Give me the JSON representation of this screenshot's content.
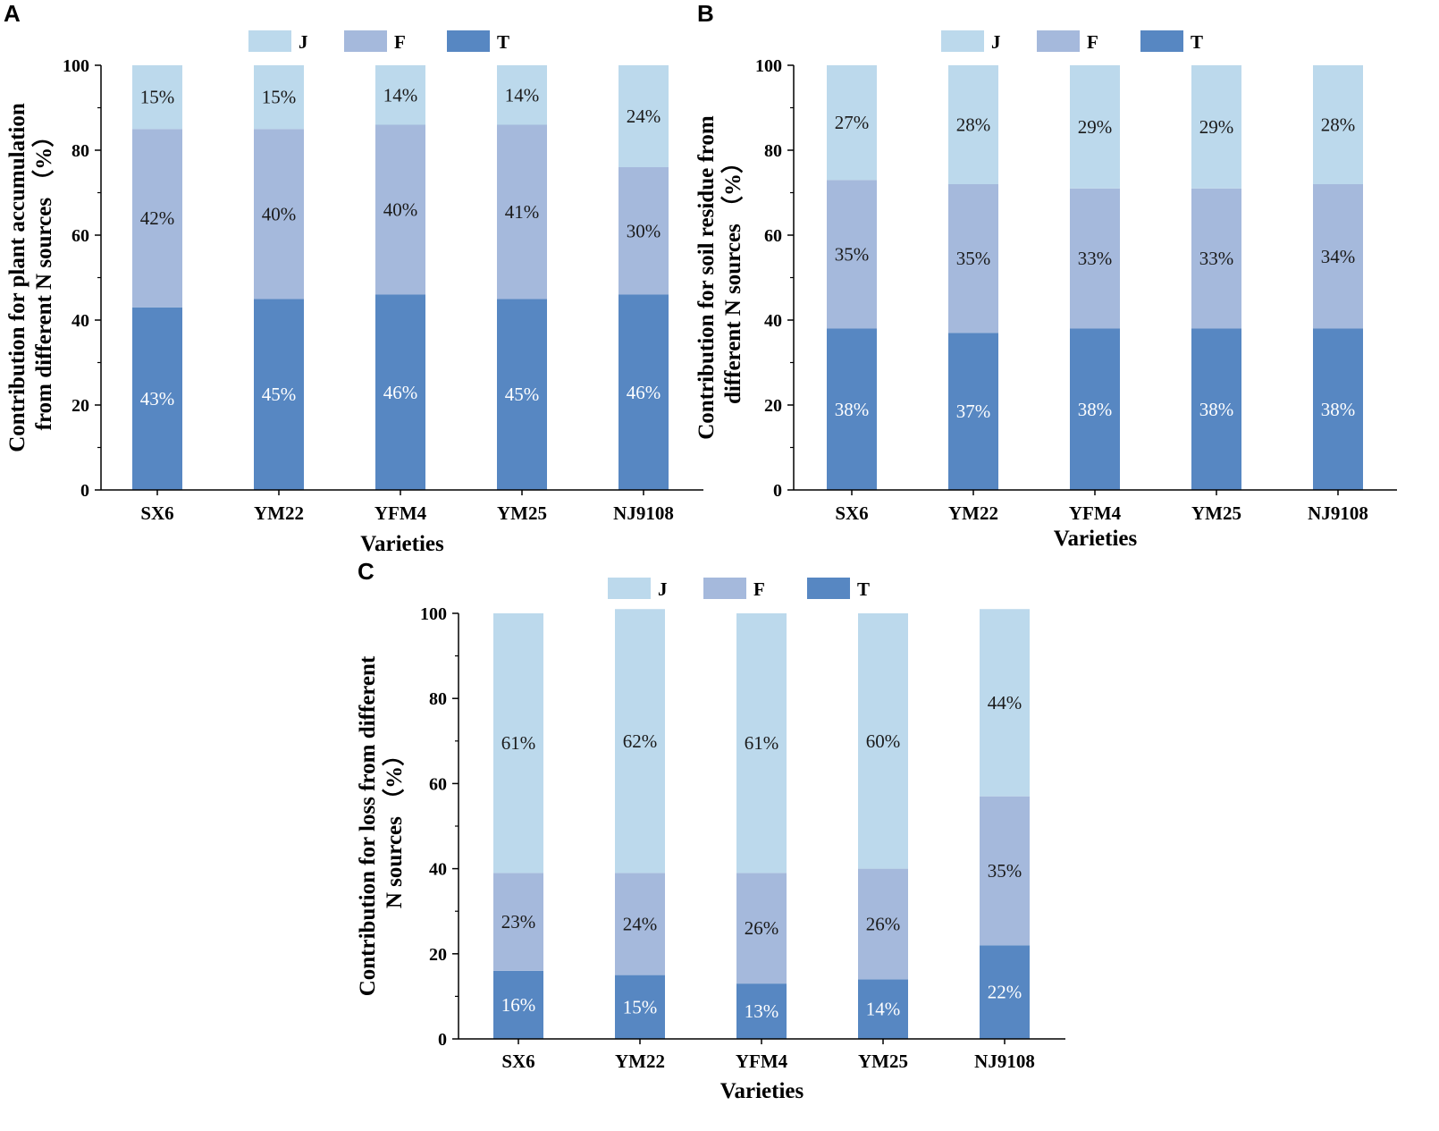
{
  "figure": {
    "title": "",
    "x_axis_title": "Varieties"
  },
  "colors": {
    "J": "#bcd9ec",
    "F": "#a5b9dc",
    "T": "#5787c2",
    "label_dark": "#1a1a1a",
    "label_light": "#ffffff",
    "axis": "#000000"
  },
  "chart_data": [
    {
      "panel": "A",
      "type": "bar",
      "stacked": true,
      "categories": [
        "SX6",
        "YM22",
        "YFM4",
        "YM25",
        "NJ9108"
      ],
      "series": [
        {
          "name": "T",
          "values": [
            43,
            45,
            46,
            45,
            46
          ],
          "labels": [
            "43%",
            "45%",
            "46%",
            "45%",
            "46%"
          ]
        },
        {
          "name": "F",
          "values": [
            42,
            40,
            40,
            41,
            30
          ],
          "labels": [
            "42%",
            "40%",
            "40%",
            "41%",
            "30%"
          ]
        },
        {
          "name": "J",
          "values": [
            15,
            15,
            14,
            14,
            24
          ],
          "labels": [
            "15%",
            "15%",
            "14%",
            "14%",
            "24%"
          ]
        }
      ],
      "legend": [
        "J",
        "F",
        "T"
      ],
      "xlabel": "Varieties",
      "ylabel_lines": [
        "Contribution for plant accumulation",
        "from different N sources （%）"
      ],
      "ylim": [
        0,
        100
      ],
      "yticks": [
        "0",
        "20",
        "40",
        "60",
        "80",
        "100"
      ],
      "legend_position": "top"
    },
    {
      "panel": "B",
      "type": "bar",
      "stacked": true,
      "categories": [
        "SX6",
        "YM22",
        "YFM4",
        "YM25",
        "NJ9108"
      ],
      "series": [
        {
          "name": "T",
          "values": [
            38,
            37,
            38,
            38,
            38
          ],
          "labels": [
            "38%",
            "37%",
            "38%",
            "38%",
            "38%"
          ]
        },
        {
          "name": "F",
          "values": [
            35,
            35,
            33,
            33,
            34
          ],
          "labels": [
            "35%",
            "35%",
            "33%",
            "33%",
            "34%"
          ]
        },
        {
          "name": "J",
          "values": [
            27,
            28,
            29,
            29,
            28
          ],
          "labels": [
            "27%",
            "28%",
            "29%",
            "29%",
            "28%"
          ]
        }
      ],
      "legend": [
        "J",
        "F",
        "T"
      ],
      "xlabel": "Varieties",
      "ylabel_lines": [
        "Contribution for soil residue from",
        "different N sources （%）"
      ],
      "ylim": [
        0,
        100
      ],
      "yticks": [
        "0",
        "20",
        "40",
        "60",
        "80",
        "100"
      ],
      "legend_position": "top"
    },
    {
      "panel": "C",
      "type": "bar",
      "stacked": true,
      "categories": [
        "SX6",
        "YM22",
        "YFM4",
        "YM25",
        "NJ9108"
      ],
      "series": [
        {
          "name": "T",
          "values": [
            16,
            15,
            13,
            14,
            22
          ],
          "labels": [
            "16%",
            "15%",
            "13%",
            "14%",
            "22%"
          ]
        },
        {
          "name": "F",
          "values": [
            23,
            24,
            26,
            26,
            35
          ],
          "labels": [
            "23%",
            "24%",
            "26%",
            "26%",
            "35%"
          ]
        },
        {
          "name": "J",
          "values": [
            61,
            62,
            61,
            60,
            44
          ],
          "labels": [
            "61%",
            "62%",
            "61%",
            "60%",
            "44%"
          ]
        }
      ],
      "legend": [
        "J",
        "F",
        "T"
      ],
      "xlabel": "Varieties",
      "ylabel_lines": [
        "Contribution for loss from different",
        "N sources （%）"
      ],
      "ylim": [
        0,
        100
      ],
      "yticks": [
        "0",
        "20",
        "40",
        "60",
        "80",
        "100"
      ],
      "legend_position": "top"
    }
  ]
}
